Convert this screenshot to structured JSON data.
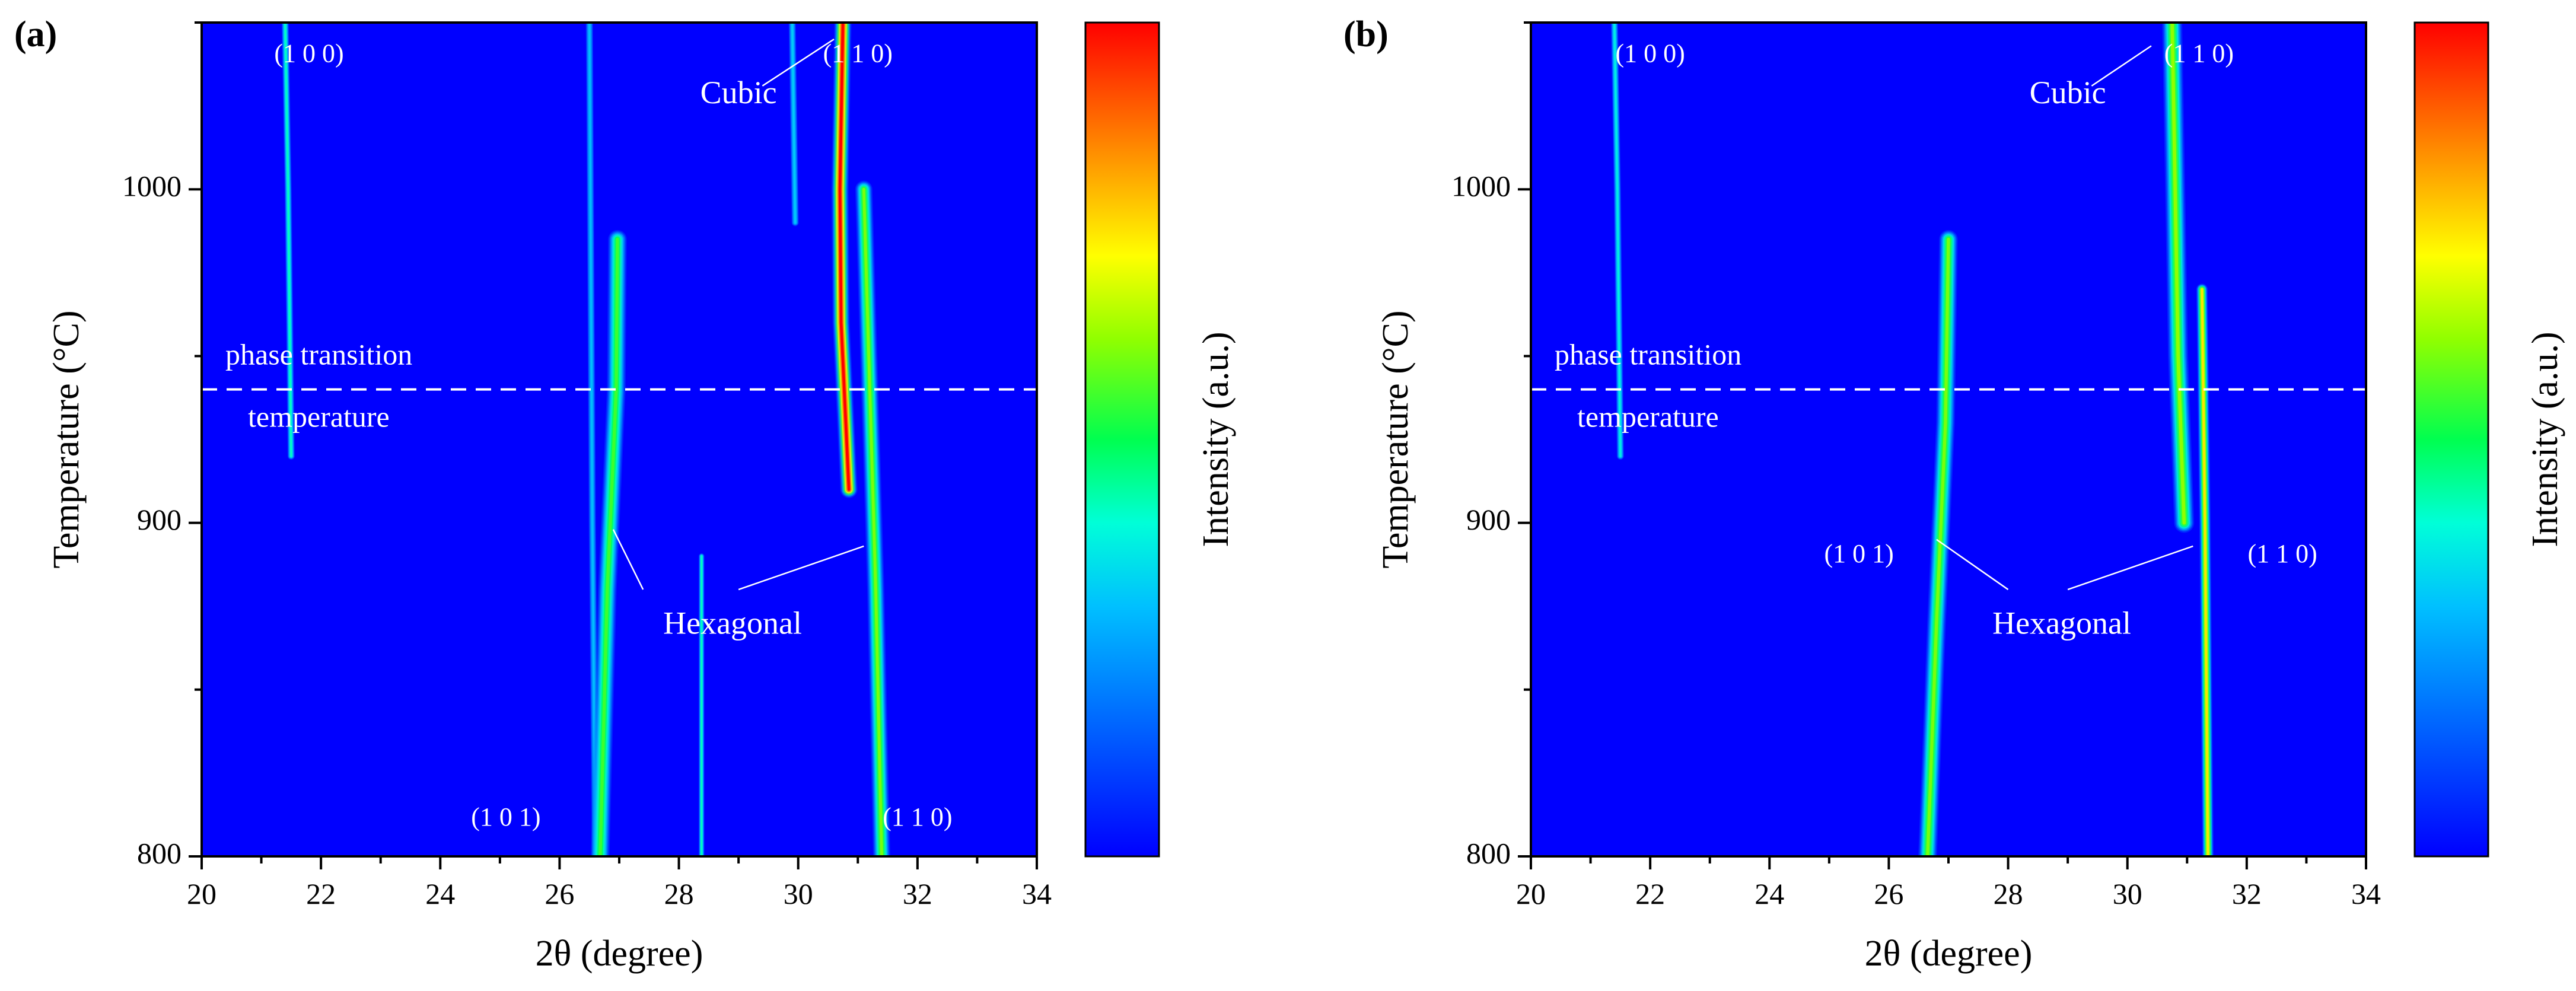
{
  "chart_data": [
    {
      "type": "heatmap",
      "panel_label": "(a)",
      "xlabel": "2θ (degree)",
      "ylabel": "Temperature (°C)",
      "colorbar_label": "Intensity (a.u.)",
      "xlim": [
        20,
        34
      ],
      "ylim": [
        800,
        1050
      ],
      "xticks": [
        20,
        22,
        24,
        26,
        28,
        30,
        32,
        34
      ],
      "yticks": [
        800,
        900,
        1000
      ],
      "phase_transition_temperature": 940,
      "phase_transition_label": [
        "phase transition",
        "temperature"
      ],
      "streaks": [
        {
          "points": [
            [
              21.4,
              1050
            ],
            [
              21.45,
              1000
            ],
            [
              21.5,
              920
            ]
          ],
          "sigma": 0.05,
          "intensity": 0.42
        },
        {
          "points": [
            [
              26.5,
              1050
            ],
            [
              26.55,
              900
            ],
            [
              26.6,
              800
            ]
          ],
          "sigma": 0.05,
          "intensity": 0.3
        },
        {
          "points": [
            [
              26.68,
              800
            ],
            [
              26.8,
              880
            ],
            [
              26.95,
              940
            ],
            [
              26.97,
              985
            ]
          ],
          "sigma": 0.13,
          "intensity": 0.55
        },
        {
          "points": [
            [
              28.38,
              800
            ],
            [
              28.38,
              890
            ]
          ],
          "sigma": 0.04,
          "intensity": 0.42
        },
        {
          "points": [
            [
              31.4,
              800
            ],
            [
              31.3,
              880
            ],
            [
              31.2,
              940
            ],
            [
              31.1,
              1000
            ]
          ],
          "sigma": 0.12,
          "intensity": 0.6
        },
        {
          "points": [
            [
              30.75,
              1050
            ],
            [
              30.7,
              1000
            ],
            [
              30.72,
              960
            ],
            [
              30.85,
              910
            ]
          ],
          "sigma": 0.12,
          "intensity": 1.0
        },
        {
          "points": [
            [
              29.9,
              1050
            ],
            [
              29.95,
              990
            ]
          ],
          "sigma": 0.05,
          "intensity": 0.32
        }
      ],
      "annotations": [
        {
          "text": "(1 0 0)",
          "x": 21.8,
          "y": 1040
        },
        {
          "text": "(1 1 0)",
          "x": 31.0,
          "y": 1040
        },
        {
          "text": "Cubic",
          "x": 29.0,
          "y": 1028
        },
        {
          "text": "(1 0 1)",
          "x": 25.1,
          "y": 811
        },
        {
          "text": "(1 1 0)",
          "x": 32.0,
          "y": 811
        },
        {
          "text": "Hexagonal",
          "x": 28.9,
          "y": 869
        }
      ],
      "leaders": [
        {
          "from": [
            29.4,
            1031
          ],
          "to": [
            30.6,
            1045
          ]
        },
        {
          "from": [
            27.4,
            880
          ],
          "to": [
            26.9,
            898
          ]
        },
        {
          "from": [
            29.0,
            880
          ],
          "to": [
            31.1,
            893
          ]
        }
      ]
    },
    {
      "type": "heatmap",
      "panel_label": "(b)",
      "xlabel": "2θ (degree)",
      "ylabel": "Temperature (°C)",
      "colorbar_label": "Intensity (a.u.)",
      "xlim": [
        20,
        34
      ],
      "ylim": [
        800,
        1050
      ],
      "xticks": [
        20,
        22,
        24,
        26,
        28,
        30,
        32,
        34
      ],
      "yticks": [
        800,
        900,
        1000
      ],
      "phase_transition_temperature": 940,
      "phase_transition_label": [
        "phase transition",
        "temperature"
      ],
      "streaks": [
        {
          "points": [
            [
              21.4,
              1050
            ],
            [
              21.45,
              1000
            ],
            [
              21.5,
              920
            ]
          ],
          "sigma": 0.05,
          "intensity": 0.38
        },
        {
          "points": [
            [
              26.65,
              800
            ],
            [
              26.8,
              870
            ],
            [
              26.95,
              930
            ],
            [
              27.0,
              985
            ]
          ],
          "sigma": 0.13,
          "intensity": 0.6
        },
        {
          "points": [
            [
              30.75,
              1050
            ],
            [
              30.8,
              1000
            ],
            [
              30.85,
              950
            ],
            [
              30.95,
              900
            ]
          ],
          "sigma": 0.14,
          "intensity": 0.62
        },
        {
          "points": [
            [
              31.35,
              800
            ],
            [
              31.3,
              900
            ],
            [
              31.25,
              970
            ]
          ],
          "sigma": 0.08,
          "intensity": 0.75
        }
      ],
      "annotations": [
        {
          "text": "(1 0 0)",
          "x": 22.0,
          "y": 1040
        },
        {
          "text": "(1 1 0)",
          "x": 31.2,
          "y": 1040
        },
        {
          "text": "Cubic",
          "x": 29.0,
          "y": 1028
        },
        {
          "text": "(1 0 1)",
          "x": 25.5,
          "y": 890
        },
        {
          "text": "(1 1 0)",
          "x": 32.6,
          "y": 890
        },
        {
          "text": "Hexagonal",
          "x": 28.9,
          "y": 869
        }
      ],
      "leaders": [
        {
          "from": [
            29.4,
            1031
          ],
          "to": [
            30.4,
            1043
          ]
        },
        {
          "from": [
            28.0,
            880
          ],
          "to": [
            26.8,
            895
          ]
        },
        {
          "from": [
            29.0,
            880
          ],
          "to": [
            31.1,
            893
          ]
        }
      ]
    }
  ]
}
